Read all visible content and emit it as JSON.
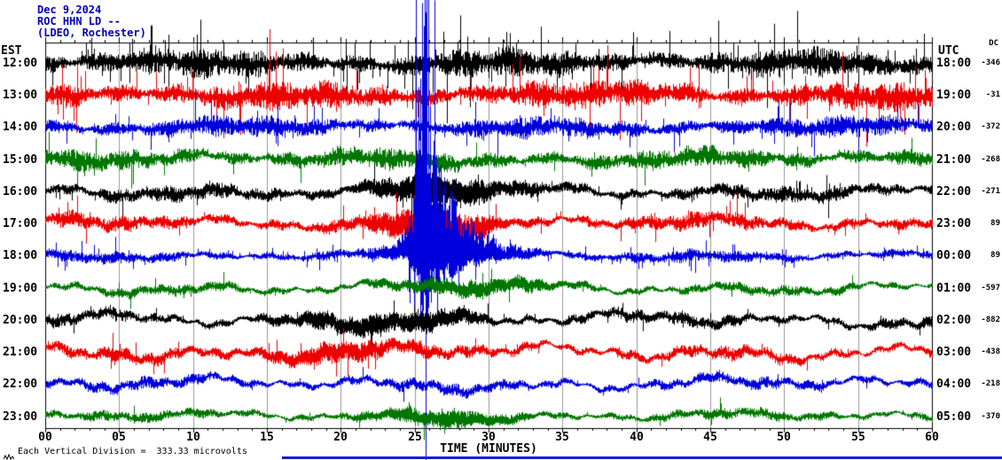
{
  "header": {
    "date": "Dec 9,2024",
    "station": "ROC HHN LD --",
    "location": "(LDEO, Rochester)"
  },
  "axes": {
    "left_tz": "EST",
    "right_tz": "UTC",
    "dc_label": "DC",
    "x_label": "TIME (MINUTES)",
    "x_ticks": [
      "00",
      "05",
      "10",
      "15",
      "20",
      "25",
      "30",
      "35",
      "40",
      "45",
      "50",
      "55",
      "60"
    ]
  },
  "footer": {
    "scale_note": "Each Vertical Division =  333.33 microvolts"
  },
  "chart_data": {
    "type": "line",
    "subtype": "helicorder-seismogram",
    "x_range_minutes": [
      0,
      60
    ],
    "x_label": "TIME (MINUTES)",
    "grid_interval_minutes": 5,
    "rows_per_hour": 1,
    "trace_colors": {
      "black": "#000000",
      "red": "#ee0000",
      "blue": "#0000dd",
      "green": "#007700"
    },
    "grid_color": "#999999",
    "rows": [
      {
        "est": "12:00",
        "utc": "18:00",
        "dc": "-346",
        "color": "black",
        "noise": 11,
        "wander": 3,
        "spike_prob": 0.06,
        "spike_mult": 3.5,
        "events": []
      },
      {
        "est": "13:00",
        "utc": "19:00",
        "dc": "-31",
        "color": "red",
        "noise": 11,
        "wander": 3,
        "spike_prob": 0.05,
        "spike_mult": 3,
        "events": []
      },
      {
        "est": "14:00",
        "utc": "20:00",
        "dc": "-372",
        "color": "blue",
        "noise": 8,
        "wander": 3,
        "spike_prob": 0.04,
        "spike_mult": 3,
        "events": []
      },
      {
        "est": "15:00",
        "utc": "21:00",
        "dc": "-268",
        "color": "green",
        "noise": 8,
        "wander": 4,
        "spike_prob": 0.02,
        "spike_mult": 2,
        "events": []
      },
      {
        "est": "16:00",
        "utc": "22:00",
        "dc": "-271",
        "color": "black",
        "noise": 6,
        "wander": 5,
        "spike_prob": 0.02,
        "spike_mult": 2,
        "events": [
          {
            "t": 26,
            "amp": 10,
            "w": 3
          }
        ]
      },
      {
        "est": "17:00",
        "utc": "23:00",
        "dc": "89",
        "color": "red",
        "noise": 6,
        "wander": 5,
        "spike_prob": 0.03,
        "spike_mult": 2,
        "events": [
          {
            "t": 26.5,
            "amp": 14,
            "w": 2.5
          }
        ]
      },
      {
        "est": "18:00",
        "utc": "00:00",
        "dc": "89",
        "color": "blue",
        "noise": 4.5,
        "wander": 3,
        "spike_prob": 0.05,
        "spike_mult": 2,
        "ev_up": 2.0,
        "ev_dn": 0.55,
        "events": [
          {
            "t": 25.6,
            "amp": 90,
            "w": 0.35
          },
          {
            "t": 26.4,
            "amp": 40,
            "w": 1.2
          },
          {
            "t": 28.5,
            "amp": 10,
            "w": 2.5
          }
        ]
      },
      {
        "est": "19:00",
        "utc": "01:00",
        "dc": "-597",
        "color": "green",
        "noise": 4,
        "wander": 5,
        "spike_prob": 0.01,
        "spike_mult": 1.5,
        "events": [
          {
            "t": 29,
            "amp": 5,
            "w": 4
          }
        ]
      },
      {
        "est": "20:00",
        "utc": "02:00",
        "dc": "-882",
        "color": "black",
        "noise": 5,
        "wander": 6,
        "spike_prob": 0.02,
        "spike_mult": 2,
        "events": [
          {
            "t": 21,
            "amp": 6,
            "w": 3
          },
          {
            "t": 27,
            "amp": 6,
            "w": 2
          }
        ]
      },
      {
        "est": "21:00",
        "utc": "03:00",
        "dc": "-438",
        "color": "red",
        "noise": 5,
        "wander": 7,
        "spike_prob": 0.02,
        "spike_mult": 2,
        "events": [
          {
            "t": 19,
            "amp": 8,
            "w": 3
          }
        ]
      },
      {
        "est": "22:00",
        "utc": "04:00",
        "dc": "-218",
        "color": "blue",
        "noise": 4.5,
        "wander": 6,
        "spike_prob": 0.015,
        "spike_mult": 2,
        "events": []
      },
      {
        "est": "23:00",
        "utc": "05:00",
        "dc": "-370",
        "color": "green",
        "noise": 4,
        "wander": 4,
        "spike_prob": 0.01,
        "spike_mult": 1.5,
        "events": [
          {
            "t": 27,
            "amp": 5,
            "w": 3
          }
        ]
      }
    ]
  },
  "misc": {
    "bottom_line_color": "#1a1ae0"
  }
}
